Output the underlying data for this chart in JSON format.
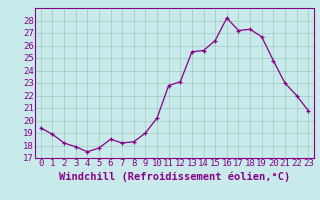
{
  "hours": [
    0,
    1,
    2,
    3,
    4,
    5,
    6,
    7,
    8,
    9,
    10,
    11,
    12,
    13,
    14,
    15,
    16,
    17,
    18,
    19,
    20,
    21,
    22,
    23
  ],
  "values": [
    19.4,
    18.9,
    18.2,
    17.9,
    17.5,
    17.8,
    18.5,
    18.2,
    18.3,
    19.0,
    20.2,
    22.8,
    23.1,
    25.5,
    25.6,
    26.4,
    28.2,
    27.2,
    27.3,
    26.7,
    24.8,
    23.0,
    22.0,
    20.8
  ],
  "line_color": "#880088",
  "marker": "+",
  "bg_color": "#c8eaea",
  "xlabel": "Windchill (Refroidissement éolien,°C)",
  "ylim": [
    17,
    29
  ],
  "yticks": [
    17,
    18,
    19,
    20,
    21,
    22,
    23,
    24,
    25,
    26,
    27,
    28
  ],
  "xtick_labels": [
    "0",
    "1",
    "2",
    "3",
    "4",
    "5",
    "6",
    "7",
    "8",
    "9",
    "10",
    "11",
    "12",
    "13",
    "14",
    "15",
    "16",
    "17",
    "18",
    "19",
    "20",
    "21",
    "22",
    "23"
  ],
  "xlabel_fontsize": 7.5,
  "tick_fontsize": 6.5,
  "grid_color": "#a0c8c0",
  "grid_linewidth": 0.5,
  "line_width": 0.9,
  "marker_size": 3
}
